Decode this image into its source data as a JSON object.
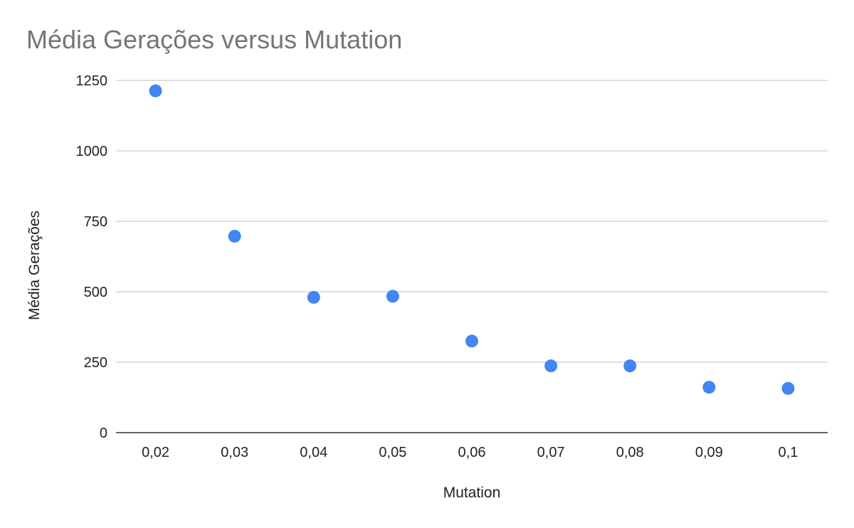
{
  "chart_data": {
    "type": "scatter",
    "title": "Média Gerações versus Mutation",
    "xlabel": "Mutation",
    "ylabel": "Média Gerações",
    "categories": [
      "0,02",
      "0,03",
      "0,04",
      "0,05",
      "0,06",
      "0,07",
      "0,08",
      "0,09",
      "0,1"
    ],
    "x": [
      0.02,
      0.03,
      0.04,
      0.05,
      0.06,
      0.07,
      0.08,
      0.09,
      0.1
    ],
    "y": [
      1213,
      697,
      480,
      484,
      325,
      237,
      237,
      161,
      157
    ],
    "ylim": [
      0,
      1250
    ],
    "yticks": [
      "0",
      "250",
      "500",
      "750",
      "1000",
      "1250"
    ],
    "ytick_values": [
      0,
      250,
      500,
      750,
      1000,
      1250
    ],
    "grid": true,
    "legend": "none",
    "colors": {
      "points": "#4285f4",
      "title": "#757575",
      "text": "#222222",
      "grid": "#cccccc",
      "baseline": "#333333"
    }
  }
}
